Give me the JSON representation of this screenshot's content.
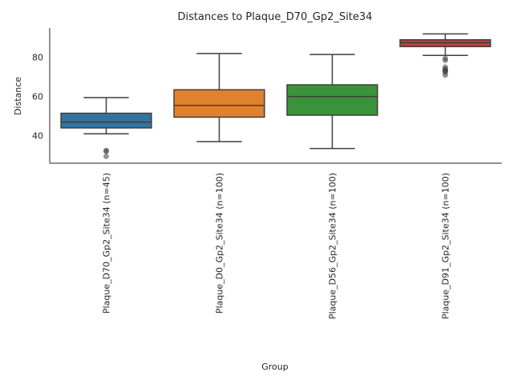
{
  "chart_data": {
    "type": "box",
    "title": "Distances to Plaque_D70_Gp2_Site34",
    "xlabel": "Group",
    "ylabel": "Distance",
    "ylim": [
      26,
      95
    ],
    "yticks": [
      40,
      60,
      80
    ],
    "grid": false,
    "categories": [
      "Plaque_D70_Gp2_Site34 (n=45)",
      "Plaque_D0_Gp2_Site34 (n=100)",
      "Plaque_D56_Gp2_Site34 (n=100)",
      "Plaque_D91_Gp2_Site34 (n=100)"
    ],
    "colors": [
      "#3274a1",
      "#e1812c",
      "#3a923a",
      "#c03d3e"
    ],
    "series": [
      {
        "whisker_low": 41,
        "q1": 44,
        "median": 47,
        "q3": 51.5,
        "whisker_high": 59.5,
        "outliers": [
          32.5,
          32,
          29.5
        ]
      },
      {
        "whisker_low": 37,
        "q1": 49.5,
        "median": 55.5,
        "q3": 63.5,
        "whisker_high": 82,
        "outliers": []
      },
      {
        "whisker_low": 33.5,
        "q1": 50.5,
        "median": 60,
        "q3": 66,
        "whisker_high": 81.5,
        "outliers": []
      },
      {
        "whisker_low": 81,
        "q1": 85.5,
        "median": 87.5,
        "q3": 89,
        "whisker_high": 92,
        "outliers": [
          79.5,
          78.5,
          75,
          74,
          73.5,
          73,
          72.5,
          71
        ]
      }
    ]
  }
}
